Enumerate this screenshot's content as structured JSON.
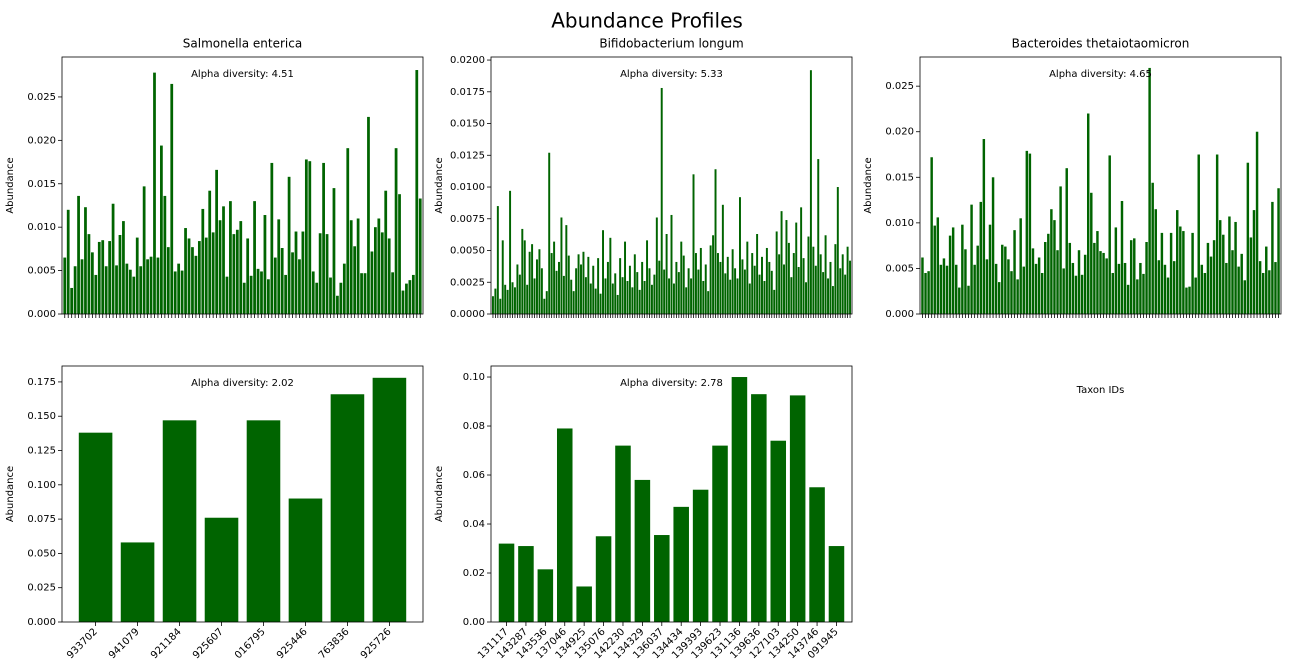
{
  "title": "Abundance Profiles",
  "chart_data": [
    {
      "type": "bar",
      "title": "Salmonella enterica",
      "ylabel": "Abundance",
      "annotation": "Alpha diversity: 4.51",
      "color": "#006400",
      "ylim": [
        0,
        0.0296
      ],
      "yticks": [
        {
          "value": 0,
          "label": "0.000"
        },
        {
          "value": 0.005,
          "label": "0.005"
        },
        {
          "value": 0.01,
          "label": "0.010"
        },
        {
          "value": 0.015,
          "label": "0.015"
        },
        {
          "value": 0.02,
          "label": "0.020"
        },
        {
          "value": 0.025,
          "label": "0.025"
        }
      ],
      "values": [
        0.0065,
        0.012,
        0.003,
        0.0055,
        0.0136,
        0.0063,
        0.0123,
        0.0092,
        0.0071,
        0.0045,
        0.0083,
        0.0085,
        0.0055,
        0.0084,
        0.0127,
        0.0056,
        0.0091,
        0.0107,
        0.0058,
        0.0051,
        0.0043,
        0.0088,
        0.0055,
        0.0147,
        0.0063,
        0.0066,
        0.0278,
        0.0065,
        0.0194,
        0.0136,
        0.0077,
        0.0265,
        0.0049,
        0.0058,
        0.005,
        0.0099,
        0.0087,
        0.0077,
        0.0067,
        0.0084,
        0.0121,
        0.0088,
        0.0142,
        0.0094,
        0.0166,
        0.0108,
        0.0124,
        0.0043,
        0.013,
        0.0092,
        0.0097,
        0.0107,
        0.0036,
        0.0087,
        0.0044,
        0.013,
        0.0052,
        0.0049,
        0.0114,
        0.004,
        0.0174,
        0.0065,
        0.0109,
        0.0076,
        0.0045,
        0.0158,
        0.0071,
        0.0095,
        0.0063,
        0.0095,
        0.0178,
        0.0176,
        0.0049,
        0.0036,
        0.0093,
        0.0174,
        0.0092,
        0.0042,
        0.0145,
        0.0021,
        0.0036,
        0.0058,
        0.0191,
        0.0108,
        0.0078,
        0.011,
        0.0047,
        0.0047,
        0.0227,
        0.0072,
        0.01,
        0.011,
        0.0094,
        0.0142,
        0.0087,
        0.0048,
        0.0191,
        0.0138,
        0.0027,
        0.0035,
        0.0039,
        0.0045,
        0.0281,
        0.0133
      ]
    },
    {
      "type": "bar",
      "title": "Bifidobacterium longum",
      "ylabel": "Abundance",
      "annotation": "Alpha diversity: 5.33",
      "color": "#006400",
      "ylim": [
        0,
        0.02024
      ],
      "yticks": [
        {
          "value": 0,
          "label": "0.0000"
        },
        {
          "value": 0.0025,
          "label": "0.0025"
        },
        {
          "value": 0.005,
          "label": "0.0050"
        },
        {
          "value": 0.0075,
          "label": "0.0075"
        },
        {
          "value": 0.01,
          "label": "0.0100"
        },
        {
          "value": 0.0125,
          "label": "0.0125"
        },
        {
          "value": 0.015,
          "label": "0.0150"
        },
        {
          "value": 0.0175,
          "label": "0.0175"
        },
        {
          "value": 0.02,
          "label": "0.0200"
        }
      ],
      "values": [
        0.0014,
        0.002,
        0.0085,
        0.0012,
        0.0058,
        0.0023,
        0.0019,
        0.0097,
        0.0025,
        0.0021,
        0.0039,
        0.0031,
        0.0067,
        0.0058,
        0.0023,
        0.0049,
        0.0055,
        0.0028,
        0.0043,
        0.0051,
        0.0036,
        0.0012,
        0.0018,
        0.0127,
        0.0048,
        0.0057,
        0.0034,
        0.0041,
        0.0076,
        0.003,
        0.007,
        0.0046,
        0.0027,
        0.0018,
        0.0036,
        0.0047,
        0.0039,
        0.0049,
        0.0029,
        0.0045,
        0.0024,
        0.0038,
        0.002,
        0.0044,
        0.0016,
        0.0066,
        0.0028,
        0.0041,
        0.006,
        0.0024,
        0.0032,
        0.0015,
        0.0044,
        0.0029,
        0.0057,
        0.0026,
        0.0038,
        0.0021,
        0.0047,
        0.0033,
        0.0019,
        0.0041,
        0.0026,
        0.0058,
        0.0036,
        0.0023,
        0.0031,
        0.0076,
        0.0042,
        0.0178,
        0.0035,
        0.0063,
        0.0028,
        0.0078,
        0.0024,
        0.0041,
        0.0033,
        0.0057,
        0.0046,
        0.0021,
        0.0036,
        0.0028,
        0.011,
        0.0048,
        0.0035,
        0.0052,
        0.0026,
        0.0039,
        0.0018,
        0.0054,
        0.0062,
        0.0114,
        0.0048,
        0.0041,
        0.0086,
        0.0032,
        0.0045,
        0.0027,
        0.0051,
        0.0036,
        0.0028,
        0.0092,
        0.0043,
        0.0035,
        0.0057,
        0.0024,
        0.0048,
        0.0038,
        0.0063,
        0.0031,
        0.0045,
        0.0026,
        0.0052,
        0.0041,
        0.0034,
        0.0019,
        0.0065,
        0.0047,
        0.0081,
        0.0039,
        0.0074,
        0.0056,
        0.0029,
        0.0048,
        0.0072,
        0.0037,
        0.0084,
        0.0044,
        0.0025,
        0.0061,
        0.0192,
        0.0053,
        0.0038,
        0.0122,
        0.0047,
        0.0033,
        0.0062,
        0.0028,
        0.0041,
        0.0022,
        0.0055,
        0.01,
        0.0036,
        0.0047,
        0.0031,
        0.0053,
        0.0042
      ]
    },
    {
      "type": "bar",
      "title": "Bacteroides thetaiotaomicron",
      "xlabel": "Taxon IDs",
      "ylabel": "Abundance",
      "annotation": "Alpha diversity: 4.65",
      "color": "#006400",
      "ylim": [
        0,
        0.0282
      ],
      "yticks": [
        {
          "value": 0,
          "label": "0.000"
        },
        {
          "value": 0.005,
          "label": "0.005"
        },
        {
          "value": 0.01,
          "label": "0.010"
        },
        {
          "value": 0.015,
          "label": "0.015"
        },
        {
          "value": 0.02,
          "label": "0.020"
        },
        {
          "value": 0.025,
          "label": "0.025"
        }
      ],
      "values": [
        0.0062,
        0.0045,
        0.0047,
        0.0172,
        0.0097,
        0.0106,
        0.0054,
        0.0061,
        0.0053,
        0.0086,
        0.0095,
        0.0054,
        0.0029,
        0.0098,
        0.0071,
        0.0031,
        0.012,
        0.0054,
        0.0075,
        0.0123,
        0.0192,
        0.006,
        0.0098,
        0.015,
        0.0055,
        0.0035,
        0.0076,
        0.0074,
        0.006,
        0.0047,
        0.0092,
        0.0038,
        0.0105,
        0.0052,
        0.0179,
        0.0176,
        0.0072,
        0.0055,
        0.0062,
        0.0045,
        0.0079,
        0.0088,
        0.0115,
        0.0103,
        0.007,
        0.014,
        0.005,
        0.016,
        0.0078,
        0.0056,
        0.0042,
        0.007,
        0.0043,
        0.0065,
        0.022,
        0.0133,
        0.0078,
        0.0091,
        0.0069,
        0.0067,
        0.0061,
        0.0174,
        0.0045,
        0.0095,
        0.0055,
        0.0124,
        0.0056,
        0.0032,
        0.0081,
        0.0083,
        0.0038,
        0.0056,
        0.0044,
        0.0079,
        0.027,
        0.0144,
        0.0115,
        0.0059,
        0.0089,
        0.0054,
        0.004,
        0.0089,
        0.0058,
        0.0114,
        0.0096,
        0.0091,
        0.0029,
        0.003,
        0.0089,
        0.004,
        0.0175,
        0.0054,
        0.0045,
        0.0078,
        0.0063,
        0.0081,
        0.0175,
        0.0103,
        0.0087,
        0.0056,
        0.0107,
        0.007,
        0.0101,
        0.0052,
        0.0066,
        0.0037,
        0.0166,
        0.0084,
        0.0114,
        0.02,
        0.0058,
        0.0045,
        0.0074,
        0.0048,
        0.0123,
        0.0057,
        0.0138
      ]
    },
    {
      "type": "bar",
      "ylabel": "Abundance",
      "annotation": "Alpha diversity: 2.02",
      "color": "#006400",
      "categories": [
        "933702",
        "941079",
        "921184",
        "925607",
        "016795",
        "925446",
        "763836",
        "925726"
      ],
      "ylim": [
        0,
        0.1866
      ],
      "yticks": [
        {
          "value": 0,
          "label": "0.000"
        },
        {
          "value": 0.025,
          "label": "0.025"
        },
        {
          "value": 0.05,
          "label": "0.050"
        },
        {
          "value": 0.075,
          "label": "0.075"
        },
        {
          "value": 0.1,
          "label": "0.100"
        },
        {
          "value": 0.125,
          "label": "0.125"
        },
        {
          "value": 0.15,
          "label": "0.150"
        },
        {
          "value": 0.175,
          "label": "0.175"
        }
      ],
      "values": [
        0.138,
        0.058,
        0.147,
        0.076,
        0.147,
        0.09,
        0.166,
        0.178
      ]
    },
    {
      "type": "bar",
      "ylabel": "Abundance",
      "annotation": "Alpha diversity: 2.78",
      "color": "#006400",
      "categories": [
        "131117",
        "143287",
        "143536",
        "137046",
        "134925",
        "135076",
        "142230",
        "134329",
        "136037",
        "134434",
        "139393",
        "139623",
        "131136",
        "139636",
        "127103",
        "134250",
        "143746",
        "091945"
      ],
      "ylim": [
        0,
        0.1045
      ],
      "yticks": [
        {
          "value": 0,
          "label": "0.00"
        },
        {
          "value": 0.02,
          "label": "0.02"
        },
        {
          "value": 0.04,
          "label": "0.04"
        },
        {
          "value": 0.06,
          "label": "0.06"
        },
        {
          "value": 0.08,
          "label": "0.08"
        },
        {
          "value": 0.1,
          "label": "0.10"
        }
      ],
      "values": [
        0.032,
        0.031,
        0.0215,
        0.079,
        0.0145,
        0.035,
        0.072,
        0.058,
        0.0355,
        0.047,
        0.054,
        0.072,
        0.1,
        0.093,
        0.074,
        0.0925,
        0.055,
        0.031
      ]
    }
  ]
}
